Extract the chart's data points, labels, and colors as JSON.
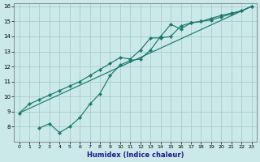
{
  "bg_color": "#cce9e9",
  "grid_color": "#aacccc",
  "line_color": "#1a7a6e",
  "xlabel": "Humidex (Indice chaleur)",
  "xlim": [
    -0.5,
    23.5
  ],
  "ylim": [
    7,
    16.2
  ],
  "xticks": [
    0,
    1,
    2,
    3,
    4,
    5,
    6,
    7,
    8,
    9,
    10,
    11,
    12,
    13,
    14,
    15,
    16,
    17,
    18,
    19,
    20,
    21,
    22,
    23
  ],
  "yticks": [
    8,
    9,
    10,
    11,
    12,
    13,
    14,
    15,
    16
  ],
  "line1_x": [
    0,
    1,
    2,
    3,
    4,
    5,
    6,
    7,
    8,
    9,
    10,
    11,
    12,
    13,
    14,
    15,
    16,
    17,
    18,
    19,
    20,
    21,
    22,
    23
  ],
  "line1_y": [
    8.9,
    9.5,
    9.8,
    10.1,
    10.4,
    10.7,
    11.0,
    11.4,
    11.8,
    12.2,
    12.6,
    12.5,
    13.1,
    13.9,
    13.9,
    14.0,
    14.7,
    14.9,
    15.0,
    15.1,
    15.3,
    15.5,
    15.7,
    16.0
  ],
  "line2_x": [
    2,
    3,
    4,
    5,
    6,
    7,
    8,
    9,
    10,
    11,
    12,
    13,
    14,
    15,
    16,
    17,
    18,
    19,
    20,
    21,
    22,
    23
  ],
  "line2_y": [
    7.9,
    8.2,
    7.6,
    8.0,
    8.6,
    9.5,
    10.2,
    11.4,
    12.1,
    12.4,
    12.5,
    13.1,
    14.0,
    14.8,
    14.5,
    14.9,
    15.0,
    15.2,
    15.4,
    15.55,
    15.7,
    16.0
  ],
  "line3_x": [
    0,
    23
  ],
  "line3_y": [
    8.9,
    16.0
  ]
}
